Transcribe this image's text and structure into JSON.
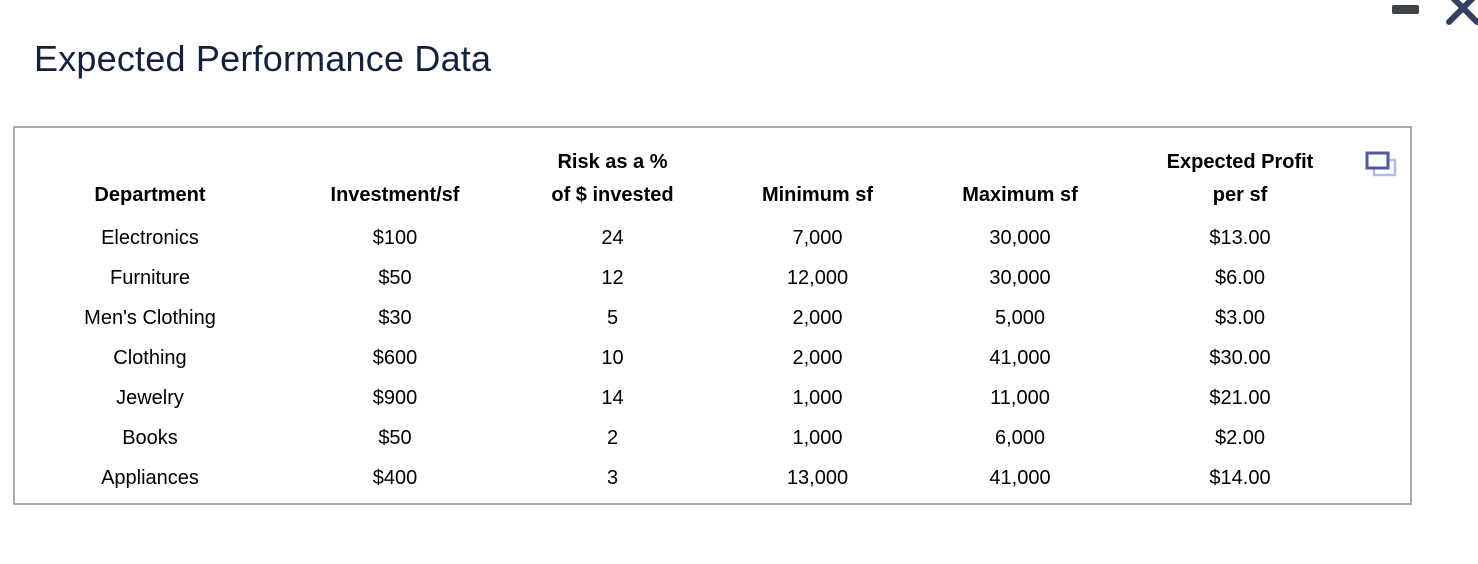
{
  "title": "Expected Performance Data",
  "window_controls": {
    "minimize_icon": "minimize-icon",
    "close_icon": "close-icon"
  },
  "panel": {
    "copy_icon": "copy-icon"
  },
  "chart_data": {
    "type": "table",
    "title": "Expected Performance Data",
    "columns": [
      "Department",
      "Investment/sf",
      "Risk as a %\nof $ invested",
      "Minimum sf",
      "Maximum sf",
      "Expected Profit\nper sf"
    ],
    "rows": [
      [
        "Electronics",
        "$100",
        "24",
        "7,000",
        "30,000",
        "$13.00"
      ],
      [
        "Furniture",
        "$50",
        "12",
        "12,000",
        "30,000",
        "$6.00"
      ],
      [
        "Men's Clothing",
        "$30",
        "5",
        "2,000",
        "5,000",
        "$3.00"
      ],
      [
        "Clothing",
        "$600",
        "10",
        "2,000",
        "41,000",
        "$30.00"
      ],
      [
        "Jewelry",
        "$900",
        "14",
        "1,000",
        "11,000",
        "$21.00"
      ],
      [
        "Books",
        "$50",
        "2",
        "1,000",
        "6,000",
        "$2.00"
      ],
      [
        "Appliances",
        "$400",
        "3",
        "13,000",
        "41,000",
        "$14.00"
      ]
    ]
  },
  "colors": {
    "title_text": "#14213d",
    "table_text": "#000000",
    "panel_border": "#ababab",
    "minimize_icon": "#3e4347",
    "close_icon": "#33415c",
    "copy_icon_front": "#4c59a4",
    "copy_icon_back": "#b6bce1"
  }
}
